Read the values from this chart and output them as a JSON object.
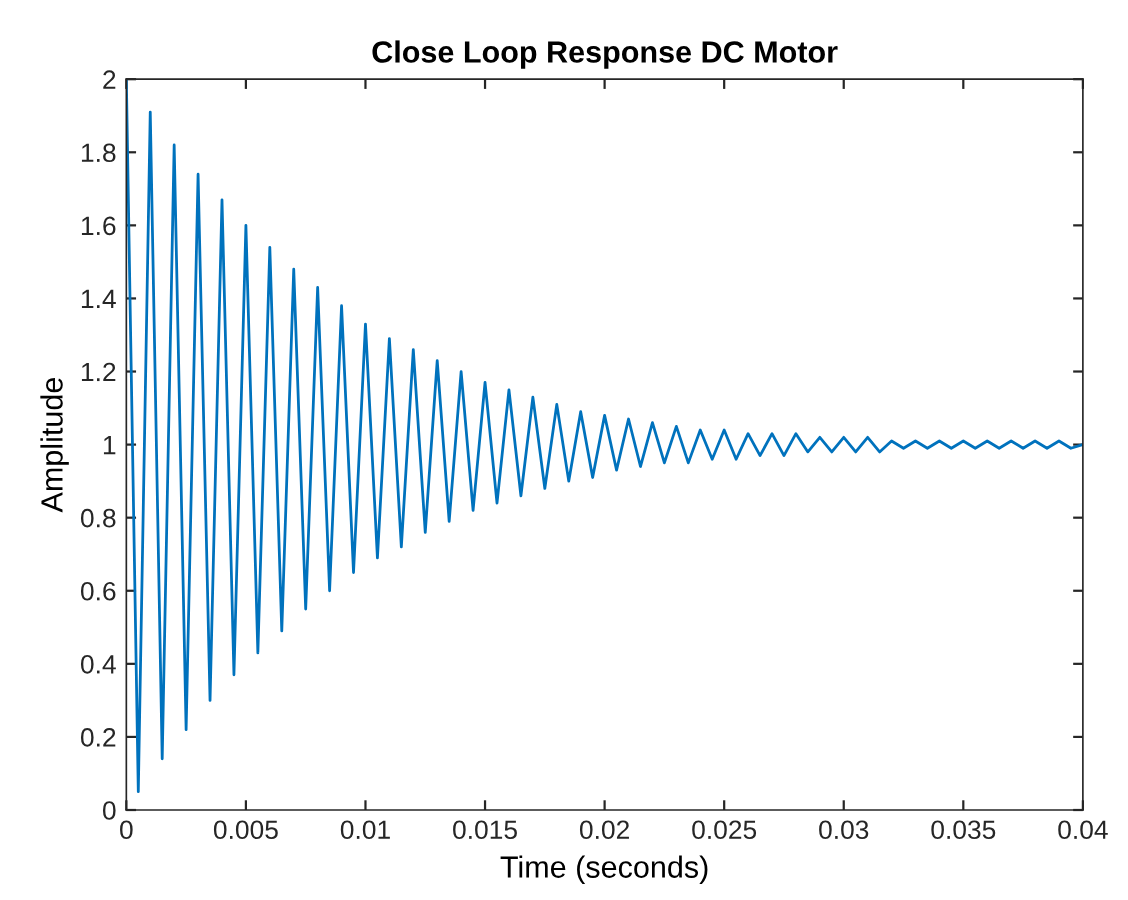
{
  "chart_data": {
    "type": "line",
    "title": "Close Loop Response DC Motor",
    "xlabel": "Time (seconds)",
    "ylabel": "Amplitude",
    "x": [
      0,
      0.0005,
      0.001,
      0.0015,
      0.002,
      0.0025,
      0.003,
      0.0035,
      0.004,
      0.0045,
      0.005,
      0.0055,
      0.006,
      0.0065,
      0.007,
      0.0075,
      0.008,
      0.0085,
      0.009,
      0.0095,
      0.01,
      0.0105,
      0.011,
      0.0115,
      0.012,
      0.0125,
      0.013,
      0.0135,
      0.014,
      0.0145,
      0.015,
      0.0155,
      0.016,
      0.0165,
      0.017,
      0.0175,
      0.018,
      0.0185,
      0.019,
      0.0195,
      0.02,
      0.0205,
      0.021,
      0.0215,
      0.022,
      0.0225,
      0.023,
      0.0235,
      0.024,
      0.0245,
      0.025,
      0.0255,
      0.026,
      0.0265,
      0.027,
      0.0275,
      0.028,
      0.0285,
      0.029,
      0.0295,
      0.03,
      0.0305,
      0.031,
      0.0315,
      0.032,
      0.0325,
      0.033,
      0.0335,
      0.034,
      0.0345,
      0.035,
      0.0355,
      0.036,
      0.0365,
      0.037,
      0.0375,
      0.038,
      0.0385,
      0.039,
      0.0395,
      0.04
    ],
    "series": [
      {
        "color": "#0072bd",
        "values": [
          2.0,
          0.05,
          1.91,
          0.14,
          1.82,
          0.22,
          1.74,
          0.3,
          1.67,
          0.37,
          1.6,
          0.43,
          1.54,
          0.49,
          1.48,
          0.55,
          1.43,
          0.6,
          1.38,
          0.65,
          1.33,
          0.69,
          1.29,
          0.72,
          1.26,
          0.76,
          1.23,
          0.79,
          1.2,
          0.82,
          1.17,
          0.84,
          1.15,
          0.86,
          1.13,
          0.88,
          1.11,
          0.9,
          1.09,
          0.91,
          1.08,
          0.93,
          1.07,
          0.94,
          1.06,
          0.95,
          1.05,
          0.95,
          1.04,
          0.96,
          1.04,
          0.96,
          1.03,
          0.97,
          1.03,
          0.97,
          1.03,
          0.98,
          1.02,
          0.98,
          1.02,
          0.98,
          1.02,
          0.98,
          1.01,
          0.99,
          1.01,
          0.99,
          1.01,
          0.99,
          1.01,
          0.99,
          1.01,
          0.99,
          1.01,
          0.99,
          1.01,
          0.99,
          1.01,
          0.99,
          1.0
        ]
      }
    ],
    "xlim": [
      0,
      0.04
    ],
    "ylim": [
      0,
      2
    ],
    "xticks": [
      0,
      0.005,
      0.01,
      0.015,
      0.02,
      0.025,
      0.03,
      0.035,
      0.04
    ],
    "yticks": [
      0,
      0.2,
      0.4,
      0.6,
      0.8,
      1,
      1.2,
      1.4,
      1.6,
      1.8,
      2
    ],
    "grid": false,
    "legend": false,
    "marker": "none",
    "line_style": "solid"
  }
}
